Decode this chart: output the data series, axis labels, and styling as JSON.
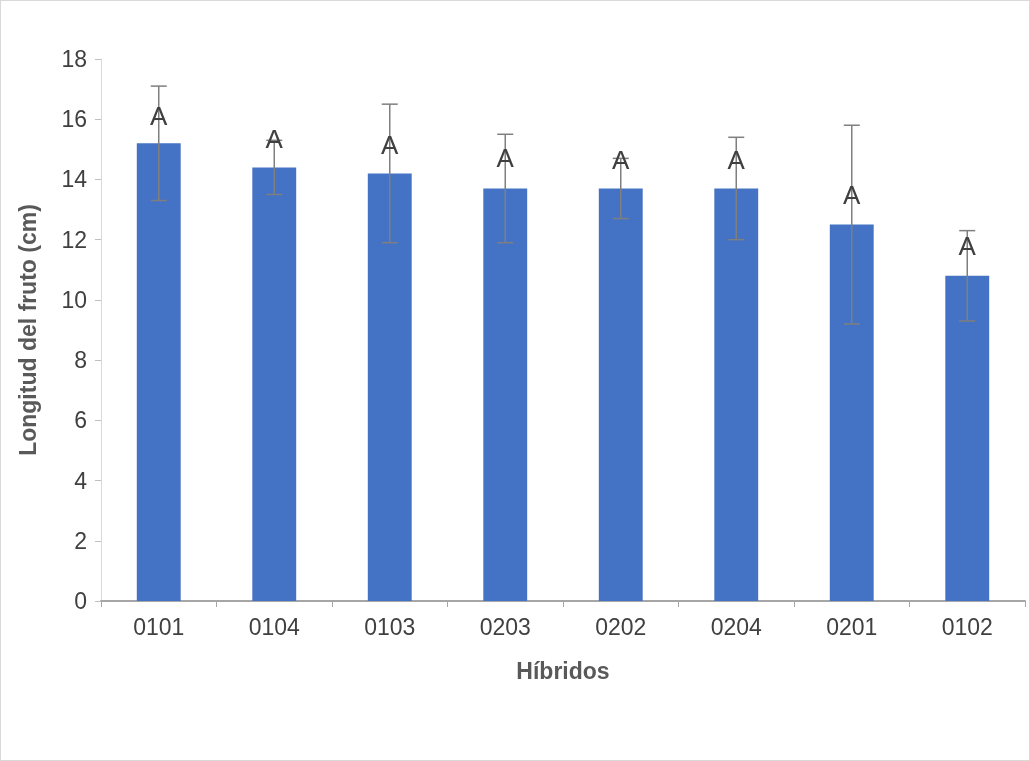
{
  "chart_data": {
    "type": "bar",
    "xlabel": "Híbridos",
    "ylabel": "Longitud del fruto (cm)",
    "categories": [
      "0101",
      "0104",
      "0103",
      "0203",
      "0202",
      "0204",
      "0201",
      "0102"
    ],
    "values": [
      15.2,
      14.4,
      14.2,
      13.7,
      13.7,
      13.7,
      12.5,
      10.8
    ],
    "errors": [
      1.9,
      0.9,
      2.3,
      1.8,
      1.0,
      1.7,
      3.3,
      1.5
    ],
    "color": "#4472c4",
    "ylim": [
      0,
      18
    ],
    "yticks": [
      0,
      2,
      4,
      6,
      8,
      10,
      12,
      14,
      16,
      18
    ],
    "grid": false,
    "annotations": [
      {
        "text": "A",
        "x": "0101",
        "y": 16.1
      },
      {
        "text": "A",
        "x": "0104",
        "y": 15.35
      },
      {
        "text": "A",
        "x": "0103",
        "y": 15.15
      },
      {
        "text": "A",
        "x": "0203",
        "y": 14.7
      },
      {
        "text": "A",
        "x": "0202",
        "y": 14.65
      },
      {
        "text": "A",
        "x": "0204",
        "y": 14.65
      },
      {
        "text": "A",
        "x": "0201",
        "y": 13.5
      },
      {
        "text": "A",
        "x": "0102",
        "y": 11.8
      }
    ]
  }
}
